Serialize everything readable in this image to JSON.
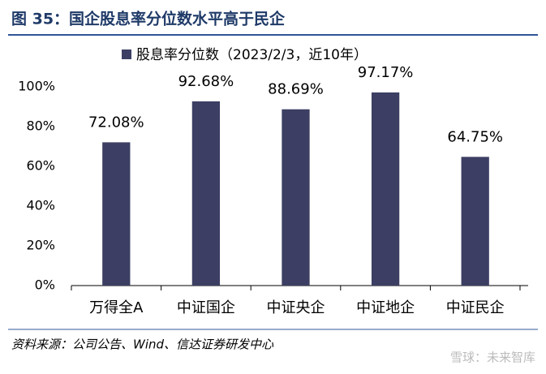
{
  "title": "图 35：国企股息率分位数水平高于民企",
  "chart_data": {
    "type": "bar",
    "categories": [
      "万得全A",
      "中证国企",
      "中证央企",
      "中证地企",
      "中证民企"
    ],
    "series": [
      {
        "name": "股息率分位数（2023/2/3，近10年）",
        "color": "#3c3f63",
        "values": [
          72.08,
          92.68,
          88.69,
          97.17,
          64.75
        ],
        "value_labels": [
          "72.08%",
          "92.68%",
          "88.69%",
          "97.17%",
          "64.75%"
        ]
      }
    ],
    "ylim": [
      0,
      100
    ],
    "yticks": [
      {
        "value": 0,
        "label": "0%"
      },
      {
        "value": 20,
        "label": "20%"
      },
      {
        "value": 40,
        "label": "40%"
      },
      {
        "value": 60,
        "label": "60%"
      },
      {
        "value": 80,
        "label": "80%"
      },
      {
        "value": 100,
        "label": "100%"
      }
    ],
    "legend": "top"
  },
  "source": "资料来源：公司公告、Wind、信达证券研发中心",
  "watermark": "雪球：未来智库"
}
